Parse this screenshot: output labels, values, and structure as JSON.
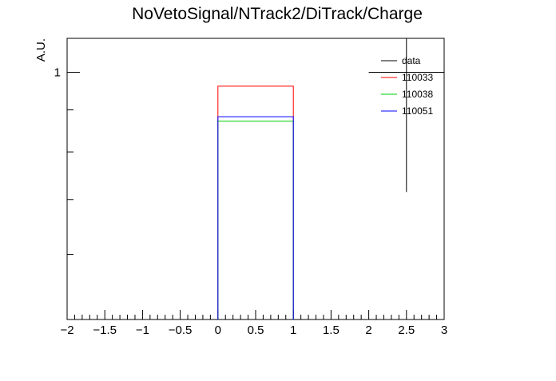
{
  "chart_data": {
    "type": "histogram",
    "title": "NoVetoSignal/NTrack2/DiTrack/Charge",
    "xlabel": "",
    "ylabel": "A.U.",
    "xlim": [
      -2,
      3
    ],
    "ylim": [
      0.5,
      1.1
    ],
    "y_scale": "log",
    "x_ticks": [
      "−2",
      "−1.5",
      "−1",
      "−0.5",
      "0",
      "0.5",
      "1",
      "1.5",
      "2",
      "2.5",
      "3"
    ],
    "x_tick_values": [
      -2,
      -1.5,
      -1,
      -0.5,
      0,
      0.5,
      1,
      1.5,
      2,
      2.5,
      3
    ],
    "y_ticks": [
      "1"
    ],
    "y_tick_values": [
      1
    ],
    "bin_low": 0,
    "bin_high": 1,
    "series": [
      {
        "name": "data",
        "color": "#000000",
        "kind": "marker",
        "x": 2.5,
        "y_low": 0.715,
        "y_high": 1.1
      },
      {
        "name": "110033",
        "color": "#ff0000",
        "kind": "hist",
        "value": 0.962
      },
      {
        "name": "110038",
        "color": "#00cc00",
        "kind": "hist",
        "value": 0.872
      },
      {
        "name": "110051",
        "color": "#0000ff",
        "kind": "hist",
        "value": 0.883
      }
    ],
    "legend_position": "top-right",
    "grid": false
  }
}
